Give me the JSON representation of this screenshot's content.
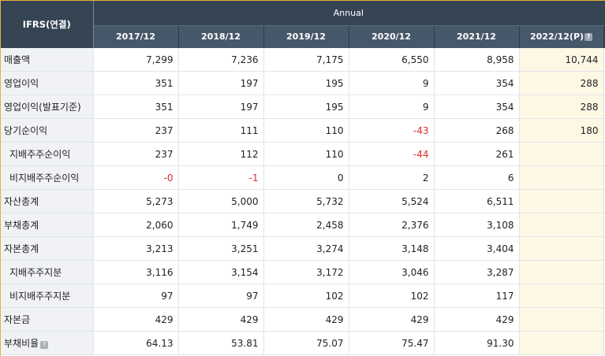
{
  "header": {
    "corner": "IFRS(연결)",
    "annual": "Annual",
    "years": [
      "2017/12",
      "2018/12",
      "2019/12",
      "2020/12",
      "2021/12",
      "2022/12(P)"
    ],
    "help_icon": "question-mark-icon"
  },
  "rows": [
    {
      "label": "매출액",
      "sub": false,
      "help": false,
      "values": [
        "7,299",
        "7,236",
        "7,175",
        "6,550",
        "8,958",
        "10,744"
      ]
    },
    {
      "label": "영업이익",
      "sub": false,
      "help": false,
      "values": [
        "351",
        "197",
        "195",
        "9",
        "354",
        "288"
      ]
    },
    {
      "label": "영업이익(발표기준)",
      "sub": false,
      "help": false,
      "values": [
        "351",
        "197",
        "195",
        "9",
        "354",
        "288"
      ]
    },
    {
      "label": "당기순이익",
      "sub": false,
      "help": false,
      "values": [
        "237",
        "111",
        "110",
        "-43",
        "268",
        "180"
      ]
    },
    {
      "label": "지배주주순이익",
      "sub": true,
      "help": false,
      "values": [
        "237",
        "112",
        "110",
        "-44",
        "261",
        ""
      ]
    },
    {
      "label": "비지배주주순이익",
      "sub": true,
      "help": false,
      "values": [
        "-0",
        "-1",
        "0",
        "2",
        "6",
        ""
      ]
    },
    {
      "label": "자산총계",
      "sub": false,
      "help": false,
      "values": [
        "5,273",
        "5,000",
        "5,732",
        "5,524",
        "6,511",
        ""
      ]
    },
    {
      "label": "부채총계",
      "sub": false,
      "help": false,
      "values": [
        "2,060",
        "1,749",
        "2,458",
        "2,376",
        "3,108",
        ""
      ]
    },
    {
      "label": "자본총계",
      "sub": false,
      "help": false,
      "values": [
        "3,213",
        "3,251",
        "3,274",
        "3,148",
        "3,404",
        ""
      ]
    },
    {
      "label": "지배주주지분",
      "sub": true,
      "help": false,
      "values": [
        "3,116",
        "3,154",
        "3,172",
        "3,046",
        "3,287",
        ""
      ]
    },
    {
      "label": "비지배주주지분",
      "sub": true,
      "help": false,
      "values": [
        "97",
        "97",
        "102",
        "102",
        "117",
        ""
      ]
    },
    {
      "label": "자본금",
      "sub": false,
      "help": false,
      "values": [
        "429",
        "429",
        "429",
        "429",
        "429",
        ""
      ]
    },
    {
      "label": "부채비율",
      "sub": false,
      "help": true,
      "values": [
        "64.13",
        "53.81",
        "75.07",
        "75.47",
        "91.30",
        ""
      ]
    }
  ],
  "colors": {
    "header_dark": "#364554",
    "header_year": "#47586a",
    "projection_bg": "#fdf7e4",
    "negative": "#e02a2a",
    "label_bg": "#f0f2f5",
    "frame_border": "#e8b13a"
  }
}
